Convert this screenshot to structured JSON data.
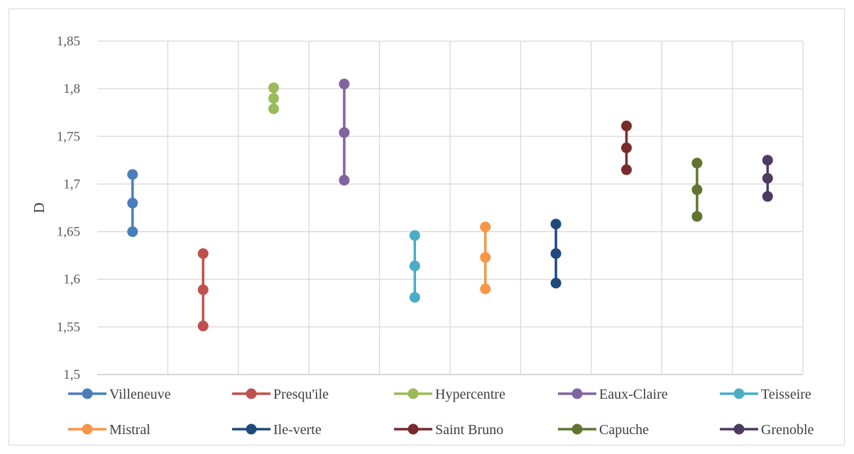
{
  "chart_data": {
    "type": "line",
    "title": "",
    "xlabel": "",
    "ylabel": "D",
    "ylim": [
      1.5,
      1.85
    ],
    "yticks": [
      "1,5",
      "1,55",
      "1,6",
      "1,65",
      "1,7",
      "1,75",
      "1,8",
      "1,85"
    ],
    "grid": true,
    "legend_position": "bottom",
    "series": [
      {
        "name": "Villeneuve",
        "color": "#4a7ebb",
        "values": [
          1.65,
          1.68,
          1.71
        ]
      },
      {
        "name": "Presqu'ile",
        "color": "#c0504d",
        "values": [
          1.551,
          1.589,
          1.627
        ]
      },
      {
        "name": "Hypercentre",
        "color": "#9bbb59",
        "values": [
          1.779,
          1.79,
          1.801
        ]
      },
      {
        "name": "Eaux-Claire",
        "color": "#8064a2",
        "values": [
          1.704,
          1.754,
          1.805
        ]
      },
      {
        "name": "Teisseire",
        "color": "#4bacc6",
        "values": [
          1.581,
          1.614,
          1.646
        ]
      },
      {
        "name": "Mistral",
        "color": "#f79646",
        "values": [
          1.59,
          1.623,
          1.655
        ]
      },
      {
        "name": "Ile-verte",
        "color": "#1f497d",
        "values": [
          1.596,
          1.627,
          1.658
        ]
      },
      {
        "name": "Saint Bruno",
        "color": "#772c2a",
        "values": [
          1.715,
          1.738,
          1.761
        ]
      },
      {
        "name": "Capuche",
        "color": "#5f7530",
        "values": [
          1.666,
          1.694,
          1.722
        ]
      },
      {
        "name": "Grenoble",
        "color": "#4d3b62",
        "values": [
          1.687,
          1.706,
          1.725
        ]
      }
    ]
  }
}
